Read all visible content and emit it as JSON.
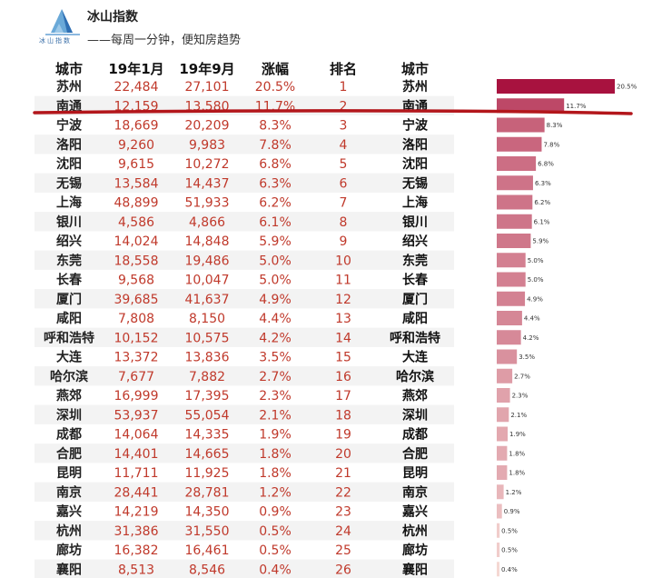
{
  "header": {
    "logo_name": "冰山指数",
    "logo_caption": "冰山指数",
    "slogan": "——每周一分钟，便知房趋势"
  },
  "table": {
    "columns": [
      "城市",
      "19年1月",
      "19年9月",
      "涨幅",
      "排名"
    ],
    "right_header": "城市",
    "rows": [
      [
        "苏州",
        "22,484",
        "27,101",
        "20.5%",
        "1"
      ],
      [
        "南通",
        "12,159",
        "13,580",
        "11.7%",
        "2"
      ],
      [
        "宁波",
        "18,669",
        "20,209",
        "8.3%",
        "3"
      ],
      [
        "洛阳",
        "9,260",
        "9,983",
        "7.8%",
        "4"
      ],
      [
        "沈阳",
        "9,615",
        "10,272",
        "6.8%",
        "5"
      ],
      [
        "无锡",
        "13,584",
        "14,437",
        "6.3%",
        "6"
      ],
      [
        "上海",
        "48,899",
        "51,933",
        "6.2%",
        "7"
      ],
      [
        "银川",
        "4,586",
        "4,866",
        "6.1%",
        "8"
      ],
      [
        "绍兴",
        "14,024",
        "14,848",
        "5.9%",
        "9"
      ],
      [
        "东莞",
        "18,558",
        "19,486",
        "5.0%",
        "10"
      ],
      [
        "长春",
        "9,568",
        "10,047",
        "5.0%",
        "11"
      ],
      [
        "厦门",
        "39,685",
        "41,637",
        "4.9%",
        "12"
      ],
      [
        "咸阳",
        "7,808",
        "8,150",
        "4.4%",
        "13"
      ],
      [
        "呼和浩特",
        "10,152",
        "10,575",
        "4.2%",
        "14"
      ],
      [
        "大连",
        "13,372",
        "13,836",
        "3.5%",
        "15"
      ],
      [
        "哈尔滨",
        "7,677",
        "7,882",
        "2.7%",
        "16"
      ],
      [
        "燕郊",
        "16,999",
        "17,395",
        "2.3%",
        "17"
      ],
      [
        "深圳",
        "53,937",
        "55,054",
        "2.1%",
        "18"
      ],
      [
        "成都",
        "14,064",
        "14,335",
        "1.9%",
        "19"
      ],
      [
        "合肥",
        "14,401",
        "14,665",
        "1.8%",
        "20"
      ],
      [
        "昆明",
        "11,711",
        "11,925",
        "1.8%",
        "21"
      ],
      [
        "南京",
        "28,441",
        "28,781",
        "1.2%",
        "22"
      ],
      [
        "嘉兴",
        "14,219",
        "14,350",
        "0.9%",
        "23"
      ],
      [
        "杭州",
        "31,386",
        "31,550",
        "0.5%",
        "24"
      ],
      [
        "廊坊",
        "16,382",
        "16,461",
        "0.5%",
        "25"
      ],
      [
        "襄阳",
        "8,513",
        "8,546",
        "0.4%",
        "26"
      ]
    ],
    "highlighted_row": 1,
    "highlight_color": "#b3161b",
    "stripe_color": "#f3f3f3"
  },
  "chart_data": {
    "type": "bar",
    "orientation": "horizontal",
    "categories": [
      "苏州",
      "南通",
      "宁波",
      "洛阳",
      "沈阳",
      "无锡",
      "上海",
      "银川",
      "绍兴",
      "东莞",
      "长春",
      "厦门",
      "咸阳",
      "呼和浩特",
      "大连",
      "哈尔滨",
      "燕郊",
      "深圳",
      "成都",
      "合肥",
      "昆明",
      "南京",
      "嘉兴",
      "杭州",
      "廊坊",
      "襄阳"
    ],
    "values": [
      20.5,
      11.7,
      8.3,
      7.8,
      6.8,
      6.3,
      6.2,
      6.1,
      5.9,
      5.0,
      5.0,
      4.9,
      4.4,
      4.2,
      3.5,
      2.7,
      2.3,
      2.1,
      1.9,
      1.8,
      1.8,
      1.2,
      0.9,
      0.5,
      0.5,
      0.4
    ],
    "labels": [
      "20.5%",
      "11.7%",
      "8.3%",
      "7.8%",
      "6.8%",
      "6.3%",
      "6.2%",
      "6.1%",
      "5.9%",
      "5.0%",
      "5.0%",
      "4.9%",
      "4.4%",
      "4.2%",
      "3.5%",
      "2.7%",
      "2.3%",
      "2.1%",
      "1.9%",
      "1.8%",
      "1.8%",
      "1.2%",
      "0.9%",
      "0.5%",
      "0.5%",
      "0.4%"
    ],
    "xlim": [
      0,
      20.5
    ],
    "color_max": "#a8123f",
    "color_min": "#f5d8d3"
  }
}
